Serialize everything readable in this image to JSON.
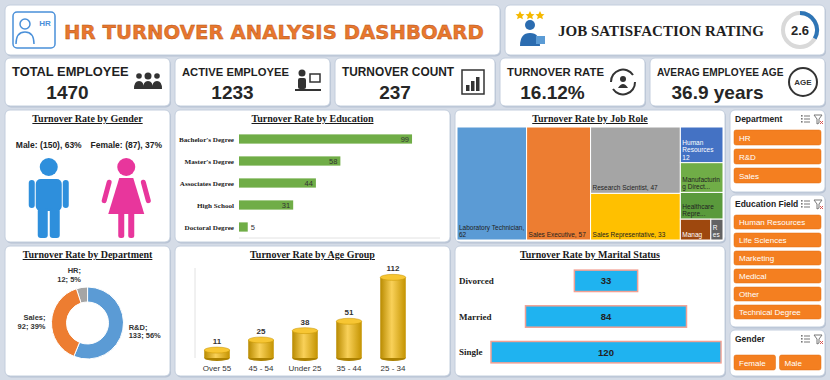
{
  "header": {
    "title": "HR TURNOVER ANALYSIS DASHBOARD",
    "icon_text": "HR"
  },
  "job_satisfaction": {
    "label": "JOB SATISFACTION RATING",
    "value": 2.6
  },
  "kpis": [
    {
      "label": "TOTAL EMPLOYEE",
      "value": 1470
    },
    {
      "label": "ACTIVE EMPLOYEE",
      "value": 1233
    },
    {
      "label": "TURNOVER COUNT",
      "value": 237
    },
    {
      "label": "TURNOVER RATE",
      "value": 16.12,
      "value_label": "16.12%"
    },
    {
      "label": "AVERAG EMPLOYEE AGE",
      "value": 36.9,
      "value_label": "36.9 years",
      "icon_text": "AGE"
    }
  ],
  "chart_data": [
    {
      "type": "pictograph",
      "title": "Turnover Rate by Gender",
      "categories": [
        "Male:",
        "Female:"
      ],
      "values": [
        150,
        87
      ],
      "value_labels": [
        "(150), 63%",
        "(87), 37%"
      ],
      "colors": [
        "#2e8fdc",
        "#e8369c"
      ],
      "data_labels": true
    },
    {
      "type": "bar",
      "orientation": "horizontal",
      "title": "Turnover Rate by Education",
      "categories": [
        "Bachelor's Degree",
        "Master's Degree",
        "Associates Degree",
        "High School",
        "Doctoral Degree"
      ],
      "values": [
        99,
        58,
        44,
        31,
        5
      ],
      "color": "#70ad47",
      "xlim": [
        0,
        115
      ],
      "data_labels": true,
      "tick_labels": "y"
    },
    {
      "type": "treemap",
      "title": "Turnover Rate by Job Role",
      "categories": [
        "Laboratory Technician,",
        "Sales Executive,",
        "Research Scientist,",
        "Sales Representative,",
        "Human Resources",
        "Manufacturing Direct...",
        "Healthcare Repre...",
        "Manag",
        "Res"
      ],
      "values": [
        62,
        57,
        47,
        33,
        12,
        10,
        9,
        5,
        2
      ],
      "value_labels": [
        "62",
        "57",
        "47",
        "33",
        "12",
        null,
        null,
        null,
        null
      ],
      "colors": [
        "#5b9bd5",
        "#ed7d31",
        "#a5a5a5",
        "#ffc000",
        "#4472c4",
        "#70ad47",
        "#5a9a3c",
        "#9e480e",
        "#636363"
      ],
      "data_labels": true
    },
    {
      "type": "donut",
      "title": "Turnover Rate by Department",
      "categories": [
        "HR;",
        "R&D;",
        "Sales;"
      ],
      "values": [
        12,
        133,
        92
      ],
      "value_labels": [
        "12; 5%",
        "133; 56%",
        "92; 39%"
      ],
      "colors": [
        "#a5a5a5",
        "#5b9bd5",
        "#ed7d31"
      ],
      "data_labels": true
    },
    {
      "type": "bar",
      "title": "Turnover Rate by Age Group",
      "categories": [
        "Over 55",
        "45 - 54",
        "Under 25",
        "35 - 44",
        "25 - 34"
      ],
      "values": [
        11,
        25,
        38,
        51,
        112
      ],
      "color": "#f5b800",
      "ylim": [
        0,
        125
      ],
      "data_labels": true,
      "tick_labels": "x",
      "marker": "cylinder"
    },
    {
      "type": "funnel",
      "orientation": "horizontal",
      "title": "Turnover Rate by Marital Status",
      "categories": [
        "Divorced",
        "Married",
        "Single"
      ],
      "values": [
        33,
        84,
        120
      ],
      "color": "#1fb3f0",
      "data_labels": true,
      "tick_labels": "y"
    }
  ],
  "slicers": [
    {
      "title": "Department",
      "items": [
        "HR",
        "R&D",
        "Sales"
      ]
    },
    {
      "title": "Education Field",
      "items": [
        "Human Resources",
        "Life Sciences",
        "Marketing",
        "Medical",
        "Other",
        "Technical Degree"
      ]
    },
    {
      "title": "Gender",
      "items": [
        "Female",
        "Male"
      ]
    }
  ]
}
